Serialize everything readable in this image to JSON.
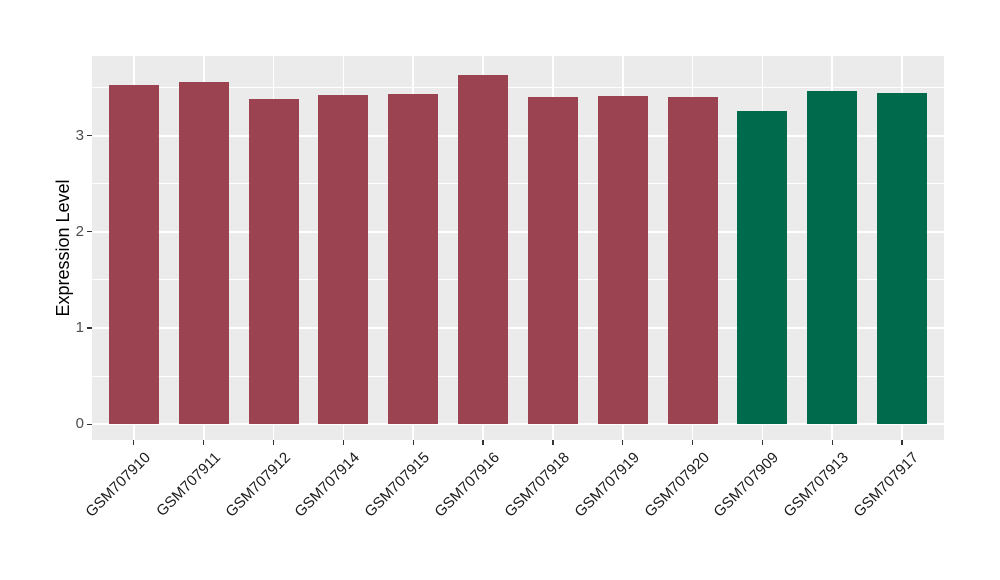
{
  "chart_data": {
    "type": "bar",
    "title": "",
    "xlabel": "",
    "ylabel": "Expression Level",
    "categories": [
      "GSM707910",
      "GSM707911",
      "GSM707912",
      "GSM707914",
      "GSM707915",
      "GSM707916",
      "GSM707918",
      "GSM707919",
      "GSM707920",
      "GSM707909",
      "GSM707913",
      "GSM707917"
    ],
    "values": [
      3.53,
      3.56,
      3.38,
      3.42,
      3.43,
      3.63,
      3.4,
      3.41,
      3.4,
      3.26,
      3.47,
      3.44
    ],
    "bar_colors": [
      "#9C4351",
      "#9C4351",
      "#9C4351",
      "#9C4351",
      "#9C4351",
      "#9C4351",
      "#9C4351",
      "#9C4351",
      "#9C4351",
      "#006B4C",
      "#006B4C",
      "#006B4C"
    ],
    "group_colors": {
      "maroon": "#9C4351",
      "green": "#006B4C"
    },
    "yticks": [
      "0",
      "1",
      "2",
      "3"
    ],
    "ytick_values": [
      0,
      1,
      2,
      3
    ],
    "minor_ytick_values": [
      0.5,
      1.5,
      2.5,
      3.5
    ],
    "ylim": [
      -0.165,
      3.83
    ],
    "bar_width_fraction": 0.72,
    "grid": true,
    "legend": "none",
    "panel_bg": "#EBEBEB",
    "grid_color": "#FFFFFF",
    "tick_color": "#333333",
    "axis_text_color": "#4D4D4D",
    "x_axis_text_color": "#1A1A1A"
  }
}
